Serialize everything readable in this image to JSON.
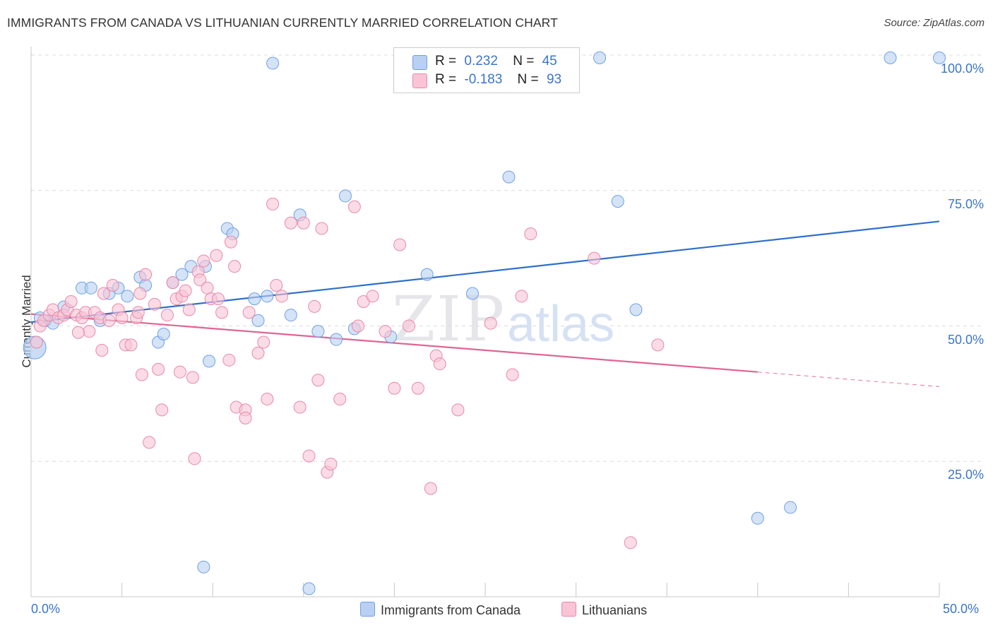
{
  "title": "IMMIGRANTS FROM CANADA VS LITHUANIAN CURRENTLY MARRIED CORRELATION CHART",
  "source": "Source: ZipAtlas.com",
  "watermark": {
    "zip": "ZIP",
    "atlas": "atlas"
  },
  "legend": {
    "r_label": "R =",
    "n_label": "N =",
    "rows": [
      {
        "r": "0.232",
        "n": "45",
        "color": "#b9d0f2"
      },
      {
        "r": "-0.183",
        "n": "93",
        "color": "#f9c4d6"
      }
    ]
  },
  "bottom_legend": [
    "Immigrants from Canada",
    "Lithuanians"
  ],
  "chart_data": {
    "type": "scatter",
    "title": "IMMIGRANTS FROM CANADA VS LITHUANIAN CURRENTLY MARRIED CORRELATION CHART",
    "xlabel": "",
    "ylabel": "Currently Married",
    "xlim": [
      0,
      50
    ],
    "ylim": [
      0,
      100
    ],
    "x_tick_labels": [
      "0.0%",
      "50.0%"
    ],
    "y_tick_labels": [
      "25.0%",
      "50.0%",
      "75.0%",
      "100.0%"
    ],
    "y_ticks": [
      25,
      50,
      75,
      100
    ],
    "grid": true,
    "legend_position": "top-center",
    "series": [
      {
        "name": "Immigrants from Canada",
        "color": "#6ea0e6",
        "fill": "#b9d0f2",
        "r": 0.232,
        "n": 45,
        "trend": {
          "x0": 0,
          "y0": 50.7,
          "x1": 50,
          "y1": 69.3
        },
        "points": [
          [
            0.2,
            46.0
          ],
          [
            0.8,
            51.0
          ],
          [
            1.2,
            50.5
          ],
          [
            1.8,
            53.5
          ],
          [
            2.8,
            57.0
          ],
          [
            3.3,
            57.0
          ],
          [
            3.8,
            51.0
          ],
          [
            4.3,
            56.0
          ],
          [
            4.8,
            57.0
          ],
          [
            5.3,
            55.5
          ],
          [
            6.0,
            59.0
          ],
          [
            6.3,
            57.5
          ],
          [
            7.0,
            47.0
          ],
          [
            7.3,
            48.5
          ],
          [
            7.8,
            58.0
          ],
          [
            8.3,
            59.5
          ],
          [
            8.8,
            61.0
          ],
          [
            9.5,
            5.5
          ],
          [
            9.6,
            61.0
          ],
          [
            9.8,
            43.5
          ],
          [
            10.8,
            68.0
          ],
          [
            11.1,
            67.0
          ],
          [
            12.3,
            55.0
          ],
          [
            12.5,
            51.0
          ],
          [
            13.0,
            55.5
          ],
          [
            13.3,
            98.5
          ],
          [
            14.3,
            52.0
          ],
          [
            14.8,
            70.5
          ],
          [
            15.3,
            1.5
          ],
          [
            15.8,
            49.0
          ],
          [
            16.8,
            47.5
          ],
          [
            17.3,
            74.0
          ],
          [
            17.8,
            49.5
          ],
          [
            19.8,
            48.0
          ],
          [
            21.8,
            59.5
          ],
          [
            24.3,
            56.0
          ],
          [
            26.3,
            77.5
          ],
          [
            31.3,
            99.5
          ],
          [
            32.3,
            73.0
          ],
          [
            33.3,
            53.0
          ],
          [
            40.0,
            14.5
          ],
          [
            41.8,
            16.5
          ],
          [
            47.3,
            99.5
          ],
          [
            50.0,
            99.5
          ],
          [
            0.5,
            51.5
          ]
        ]
      },
      {
        "name": "Lithuanians",
        "color": "#e889a8",
        "fill": "#f9c4d6",
        "r": -0.183,
        "n": 93,
        "trend": {
          "x0": 0,
          "y0": 52.2,
          "x1": 40,
          "y1": 41.5
        },
        "trend_dashed": {
          "x0": 40,
          "y0": 41.5,
          "x1": 50,
          "y1": 38.8
        },
        "points": [
          [
            0.3,
            47.0
          ],
          [
            0.5,
            50.0
          ],
          [
            0.7,
            51.0
          ],
          [
            1.0,
            52.0
          ],
          [
            1.2,
            53.0
          ],
          [
            1.5,
            51.5
          ],
          [
            1.8,
            52.0
          ],
          [
            2.0,
            53.0
          ],
          [
            2.2,
            54.5
          ],
          [
            2.5,
            52.0
          ],
          [
            2.8,
            51.5
          ],
          [
            3.0,
            52.5
          ],
          [
            3.2,
            49.0
          ],
          [
            3.5,
            52.5
          ],
          [
            3.8,
            51.5
          ],
          [
            3.9,
            45.5
          ],
          [
            4.0,
            56.0
          ],
          [
            4.3,
            51.0
          ],
          [
            4.5,
            57.5
          ],
          [
            4.8,
            53.0
          ],
          [
            5.0,
            51.5
          ],
          [
            5.2,
            46.5
          ],
          [
            5.5,
            46.5
          ],
          [
            5.8,
            51.5
          ],
          [
            6.0,
            56.0
          ],
          [
            6.1,
            41.0
          ],
          [
            6.3,
            59.5
          ],
          [
            6.5,
            28.5
          ],
          [
            6.8,
            54.0
          ],
          [
            7.0,
            42.0
          ],
          [
            7.2,
            34.5
          ],
          [
            7.5,
            52.0
          ],
          [
            7.8,
            58.0
          ],
          [
            8.0,
            55.0
          ],
          [
            8.2,
            41.5
          ],
          [
            8.3,
            55.5
          ],
          [
            8.5,
            56.5
          ],
          [
            8.7,
            53.0
          ],
          [
            8.9,
            40.5
          ],
          [
            9.0,
            25.5
          ],
          [
            9.2,
            60.0
          ],
          [
            9.3,
            58.5
          ],
          [
            9.5,
            62.0
          ],
          [
            9.7,
            57.0
          ],
          [
            9.9,
            55.0
          ],
          [
            10.2,
            63.0
          ],
          [
            10.3,
            55.0
          ],
          [
            10.5,
            52.5
          ],
          [
            11.0,
            65.5
          ],
          [
            11.2,
            61.0
          ],
          [
            11.3,
            35.0
          ],
          [
            11.8,
            34.5
          ],
          [
            11.8,
            33.0
          ],
          [
            12.5,
            45.0
          ],
          [
            12.8,
            47.0
          ],
          [
            13.0,
            36.5
          ],
          [
            13.3,
            72.5
          ],
          [
            13.5,
            57.5
          ],
          [
            13.8,
            55.5
          ],
          [
            14.3,
            69.0
          ],
          [
            14.8,
            35.0
          ],
          [
            15.0,
            69.0
          ],
          [
            15.3,
            26.0
          ],
          [
            15.8,
            40.0
          ],
          [
            16.0,
            68.0
          ],
          [
            16.3,
            23.0
          ],
          [
            16.5,
            24.5
          ],
          [
            17.0,
            36.5
          ],
          [
            17.8,
            72.0
          ],
          [
            18.0,
            50.0
          ],
          [
            18.3,
            54.5
          ],
          [
            18.8,
            55.5
          ],
          [
            19.5,
            49.0
          ],
          [
            20.0,
            38.5
          ],
          [
            20.3,
            65.0
          ],
          [
            20.8,
            50.0
          ],
          [
            21.3,
            38.5
          ],
          [
            22.0,
            20.0
          ],
          [
            22.3,
            44.5
          ],
          [
            22.5,
            43.0
          ],
          [
            23.5,
            34.5
          ],
          [
            25.3,
            50.5
          ],
          [
            26.5,
            41.0
          ],
          [
            27.0,
            55.5
          ],
          [
            27.5,
            67.0
          ],
          [
            31.0,
            62.5
          ],
          [
            33.0,
            10.0
          ],
          [
            34.5,
            46.5
          ],
          [
            2.6,
            48.8
          ],
          [
            5.9,
            52.5
          ],
          [
            10.9,
            43.7
          ],
          [
            15.6,
            53.6
          ],
          [
            12.0,
            52.5
          ]
        ]
      }
    ]
  }
}
